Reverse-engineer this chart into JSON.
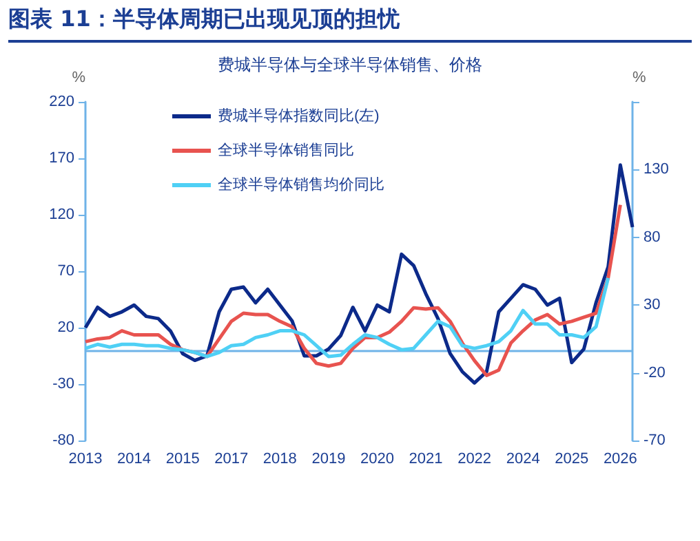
{
  "chart_data": {
    "type": "line",
    "title": "图表 11：半导体周期已出现见顶的担忧",
    "subtitle": "费城半导体与全球半导体销售、价格",
    "ylabel": "%",
    "y2label": "%",
    "categories": [
      "2013",
      null,
      null,
      null,
      "2014",
      null,
      null,
      null,
      "2015",
      null,
      null,
      null,
      "2017",
      null,
      null,
      null,
      "2018",
      null,
      null,
      null,
      "2019",
      null,
      null,
      null,
      "2020",
      null,
      null,
      null,
      "2021",
      null,
      null,
      null,
      "2022",
      null,
      null,
      null,
      "2024",
      null,
      null,
      null,
      "2025",
      null,
      null,
      null,
      "2026",
      null
    ],
    "series": [
      {
        "name": "费城半导体指数同比(左)",
        "color": "#0c2a8a",
        "values": [
          20,
          38,
          30,
          34,
          40,
          30,
          28,
          17,
          -3,
          -9,
          -5,
          34,
          54,
          56,
          42,
          54,
          40,
          26,
          -5,
          -5,
          1,
          13,
          38,
          17,
          40,
          34,
          85,
          75,
          50,
          28,
          -3,
          -19,
          -29,
          -19,
          34,
          46,
          58,
          54,
          40,
          46,
          -11,
          1,
          42,
          74,
          164,
          109
        ]
      },
      {
        "name": "全球半导体销售同比",
        "color": "#e8534f",
        "axis": "y2",
        "values": [
          3,
          5,
          6,
          11,
          8,
          8,
          8,
          1,
          -3,
          -5,
          -8,
          5,
          18,
          24,
          23,
          23,
          18,
          14,
          -2,
          -13,
          -15,
          -13,
          -2,
          6,
          6,
          10,
          18,
          28,
          27,
          28,
          18,
          2,
          -11,
          -22,
          -18,
          2,
          11,
          19,
          23,
          16,
          18,
          21,
          24,
          50,
          104,
          null
        ]
      },
      {
        "name": "全球半导体销售均价同比",
        "color": "#4fd0f5",
        "axis": "y2",
        "values": [
          -2,
          1,
          -1,
          1,
          1,
          0,
          0,
          -2,
          -3,
          -5,
          -8,
          -5,
          0,
          1,
          6,
          8,
          11,
          11,
          8,
          0,
          -8,
          -7,
          1,
          8,
          6,
          1,
          -3,
          -2,
          8,
          18,
          14,
          0,
          -2,
          0,
          3,
          11,
          26,
          16,
          16,
          8,
          8,
          6,
          14,
          50,
          null,
          null
        ]
      }
    ],
    "ylim": [
      -80,
      220
    ],
    "yticks": [
      -80,
      -30,
      20,
      70,
      120,
      170,
      220
    ],
    "y2lim": [
      -70,
      180
    ],
    "y2ticks": [
      -70,
      -20,
      30,
      80,
      130,
      {
        "value": 180,
        "label": null
      }
    ],
    "ref_lines": [
      {
        "axis": "y",
        "value": 0,
        "color": "#6fb3e8"
      }
    ],
    "legend": "top left",
    "marker": "none",
    "line_style": "solid"
  }
}
